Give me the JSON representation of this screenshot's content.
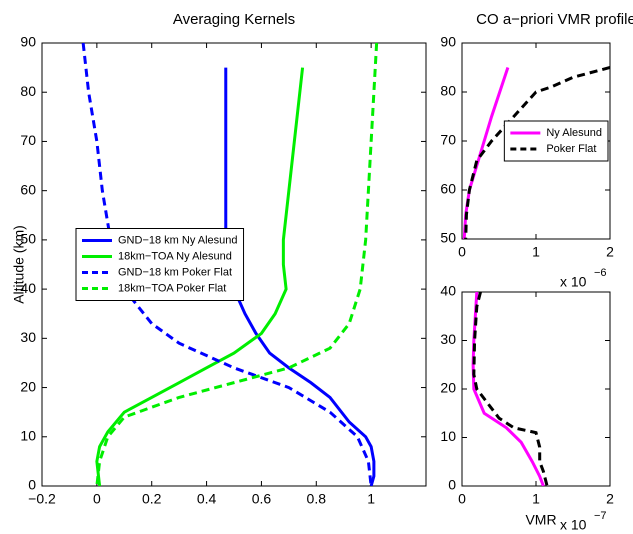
{
  "chart_data": [
    {
      "type": "line",
      "title": "Averaging Kernels",
      "ylabel": "Altitude (km)",
      "xlim": [
        -0.2,
        1.2
      ],
      "xticks": [
        {
          "value": -0.2,
          "label": "−0.2"
        },
        0,
        0.2,
        0.4,
        0.6,
        0.8,
        1
      ],
      "ylim": [
        0,
        90
      ],
      "yticks": [
        0,
        10,
        20,
        30,
        40,
        50,
        60,
        70,
        80,
        90
      ],
      "legend": "center left",
      "series": [
        {
          "name": "GND−18 km Ny Alesund",
          "color": "#0000ff",
          "dashed": false,
          "x": [
            0.47,
            0.47,
            0.47,
            0.48,
            0.5,
            0.54,
            0.58,
            0.63,
            0.7,
            0.78,
            0.85,
            0.92,
            0.98,
            1.0,
            1.01,
            1.01,
            1.0
          ],
          "y": [
            85,
            60,
            50,
            45,
            40,
            35,
            31,
            27,
            24,
            21,
            18,
            13,
            10,
            8,
            5,
            2,
            0
          ]
        },
        {
          "name": "18km−TOA Ny Alesund",
          "color": "#00ee00",
          "dashed": false,
          "x": [
            0.75,
            0.72,
            0.7,
            0.69,
            0.68,
            0.68,
            0.69,
            0.65,
            0.6,
            0.5,
            0.4,
            0.3,
            0.2,
            0.1,
            0.04,
            0.01,
            0,
            0.01
          ],
          "y": [
            85,
            70,
            60,
            55,
            50,
            45,
            40,
            35,
            31,
            27,
            24,
            21,
            18,
            15,
            11,
            8,
            5,
            0
          ]
        },
        {
          "name": "GND−18 km Poker Flat",
          "color": "#0000ff",
          "dashed": true,
          "x": [
            -0.05,
            -0.03,
            0,
            0.02,
            0.05,
            0.1,
            0.2,
            0.3,
            0.5,
            0.7,
            0.85,
            0.95,
            0.99,
            1.0
          ],
          "y": [
            90,
            80,
            70,
            60,
            50,
            40,
            33,
            29,
            24,
            20,
            15,
            10,
            5,
            0
          ]
        },
        {
          "name": "18km−TOA Poker Flat",
          "color": "#00ee00",
          "dashed": true,
          "x": [
            1.02,
            1.01,
            1.0,
            0.99,
            0.98,
            0.96,
            0.92,
            0.85,
            0.7,
            0.5,
            0.3,
            0.1,
            0.04,
            0.01,
            0
          ],
          "y": [
            90,
            80,
            70,
            60,
            50,
            40,
            33,
            28,
            24,
            21,
            18,
            14,
            10,
            5,
            0
          ]
        }
      ]
    },
    {
      "type": "line",
      "title": "CO a−priori VMR profile",
      "xlim": [
        0,
        2
      ],
      "xticks": [
        0,
        1,
        2
      ],
      "ylim": [
        50,
        90
      ],
      "yticks": [
        50,
        60,
        70,
        80,
        90
      ],
      "x_exponent": {
        "base": "x 10",
        "power": "−6"
      },
      "legend": "center right",
      "series": [
        {
          "name": "Ny Alesund",
          "color": "#ff00ff",
          "dashed": false,
          "x": [
            0.62,
            0.4,
            0.2,
            0.1,
            0.05,
            0.03
          ],
          "y": [
            85,
            75,
            65,
            60,
            55,
            50
          ]
        },
        {
          "name": "Poker Flat",
          "color": "#000000",
          "dashed": true,
          "x": [
            2,
            1.5,
            1.2,
            1.0,
            0.7,
            0.4,
            0.2,
            0.1,
            0.06,
            0.05
          ],
          "y": [
            85,
            83,
            81,
            80,
            75,
            70,
            66,
            60,
            55,
            50
          ]
        }
      ]
    },
    {
      "type": "line",
      "xlabel": "VMR",
      "xlim": [
        0,
        2
      ],
      "xticks": [
        0,
        1,
        2
      ],
      "ylim": [
        0,
        40
      ],
      "yticks": [
        0,
        10,
        20,
        30,
        40
      ],
      "x_exponent": {
        "base": "x 10",
        "power": "−7"
      },
      "series": [
        {
          "color": "#ff00ff",
          "dashed": false,
          "x": [
            0.2,
            0.18,
            0.16,
            0.15,
            0.16,
            0.3,
            0.6,
            0.8,
            0.95,
            1.05,
            1.1
          ],
          "y": [
            40,
            35,
            30,
            25,
            20,
            15,
            12,
            9,
            5,
            2,
            0
          ]
        },
        {
          "color": "#000000",
          "dashed": true,
          "x": [
            0.25,
            0.2,
            0.17,
            0.16,
            0.2,
            0.35,
            0.5,
            0.7,
            1.0,
            1.05,
            1.05,
            1.1,
            1.15
          ],
          "y": [
            40,
            37,
            30,
            23,
            20,
            17,
            14,
            12,
            11,
            8,
            5,
            3,
            0
          ]
        }
      ]
    }
  ]
}
